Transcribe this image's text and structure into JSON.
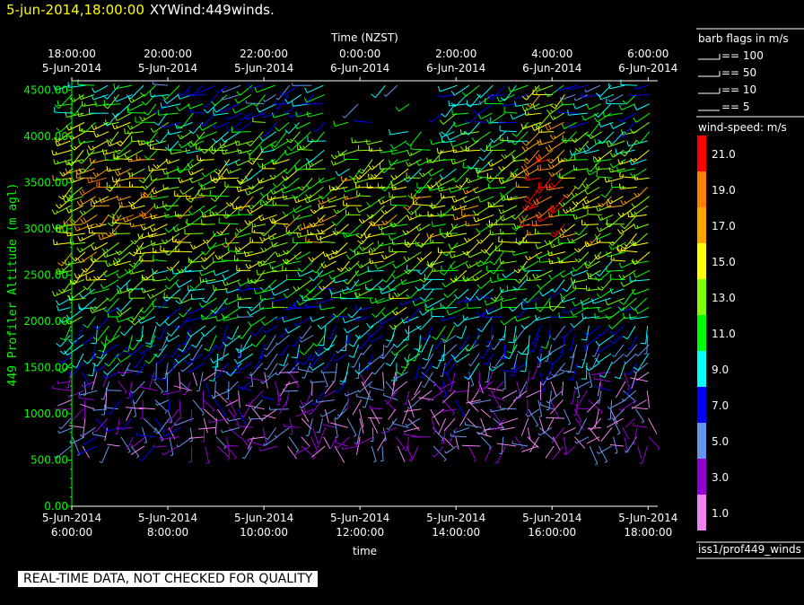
{
  "header": {
    "date": "5-jun-2014,18:00:00",
    "plot_name": "XYWind:449winds."
  },
  "disclaimer": "REAL-TIME DATA, NOT CHECKED FOR QUALITY",
  "colors": {
    "background": "#000000",
    "title_date": "#ffff00",
    "y_axis": "#00ff00",
    "axis": "#ffffff"
  },
  "chart_data": {
    "type": "scatter",
    "title": "5-jun-2014,18:00:00  XYWind:449winds.",
    "xlabel_top": "Time (NZST)",
    "xlabel_bottom": "time",
    "ylabel": "449 Profiler Altitude (m agl)",
    "ylim": [
      0,
      4600
    ],
    "yticks": [
      "0.00",
      "500.00",
      "1000.00",
      "1500.00",
      "2000.00",
      "2500.00",
      "3000.00",
      "3500.00",
      "4000.00",
      "4500.00"
    ],
    "ytick_values": [
      0,
      500,
      1000,
      1500,
      2000,
      2500,
      3000,
      3500,
      4000,
      4500
    ],
    "xlim_hours_utc": [
      6,
      18.2
    ],
    "xticks_bottom": [
      {
        "date": "5-Jun-2014",
        "time": "6:00:00",
        "hour": 6
      },
      {
        "date": "5-Jun-2014",
        "time": "8:00:00",
        "hour": 8
      },
      {
        "date": "5-Jun-2014",
        "time": "10:00:00",
        "hour": 10
      },
      {
        "date": "5-Jun-2014",
        "time": "12:00:00",
        "hour": 12
      },
      {
        "date": "5-Jun-2014",
        "time": "14:00:00",
        "hour": 14
      },
      {
        "date": "5-Jun-2014",
        "time": "16:00:00",
        "hour": 16
      },
      {
        "date": "5-Jun-2014",
        "time": "18:00:00",
        "hour": 18
      }
    ],
    "xticks_top": [
      {
        "time": "18:00:00",
        "date": "5-Jun-2014",
        "hour": 6
      },
      {
        "time": "20:00:00",
        "date": "5-Jun-2014",
        "hour": 8
      },
      {
        "time": "22:00:00",
        "date": "5-Jun-2014",
        "hour": 10
      },
      {
        "time": "0:00:00",
        "date": "6-Jun-2014",
        "hour": 12
      },
      {
        "time": "2:00:00",
        "date": "6-Jun-2014",
        "hour": 14
      },
      {
        "time": "4:00:00",
        "date": "6-Jun-2014",
        "hour": 16
      },
      {
        "time": "6:00:00",
        "date": "6-Jun-2014",
        "hour": 18
      }
    ],
    "barbs_legend_title": "barb flags in m/s",
    "barbs_legend": [
      "== 100",
      "== 50",
      "== 10",
      "== 5"
    ],
    "colorbar_title": "wind-speed: m/s",
    "colorbar": [
      {
        "label": "21.0",
        "color": "#ff0000"
      },
      {
        "label": "19.0",
        "color": "#ff7f00"
      },
      {
        "label": "17.0",
        "color": "#ffa500"
      },
      {
        "label": "15.0",
        "color": "#ffff00"
      },
      {
        "label": "13.0",
        "color": "#7fff00"
      },
      {
        "label": "11.0",
        "color": "#00ff00"
      },
      {
        "label": "9.0",
        "color": "#00ffff"
      },
      {
        "label": "7.0",
        "color": "#0000ff"
      },
      {
        "label": "5.0",
        "color": "#6495ed"
      },
      {
        "label": "3.0",
        "color": "#9400d3"
      },
      {
        "label": "1.0",
        "color": "#ee82ee"
      }
    ],
    "source_label": "iss1/prof449_winds",
    "profile_times_hours": [
      6.0,
      6.25,
      6.5,
      6.75,
      7.0,
      7.25,
      7.5,
      7.75,
      8.0,
      8.25,
      8.5,
      8.75,
      9.0,
      9.25,
      9.5,
      9.75,
      10.0,
      10.25,
      10.5,
      10.75,
      11.0,
      11.25,
      11.5,
      11.75,
      12.0,
      12.25,
      12.5,
      12.75,
      13.0,
      13.25,
      13.5,
      13.75,
      14.0,
      14.25,
      14.5,
      14.75,
      15.0,
      15.25,
      15.5,
      15.75,
      16.0,
      16.25,
      16.5,
      16.75,
      17.0,
      17.25,
      17.5,
      17.75,
      18.0
    ],
    "gate_altitudes_m": [
      650,
      750,
      850,
      950,
      1050,
      1150,
      1250,
      1350,
      1450,
      1550,
      1650,
      1750,
      1850,
      1950,
      2050,
      2150,
      2250,
      2350,
      2450,
      2550,
      2650,
      2750,
      2850,
      2950,
      3050,
      3150,
      3250,
      3350,
      3450,
      3550,
      3650,
      3750,
      3850,
      3950,
      4050,
      4150,
      4250,
      4350,
      4450,
      4550
    ]
  }
}
